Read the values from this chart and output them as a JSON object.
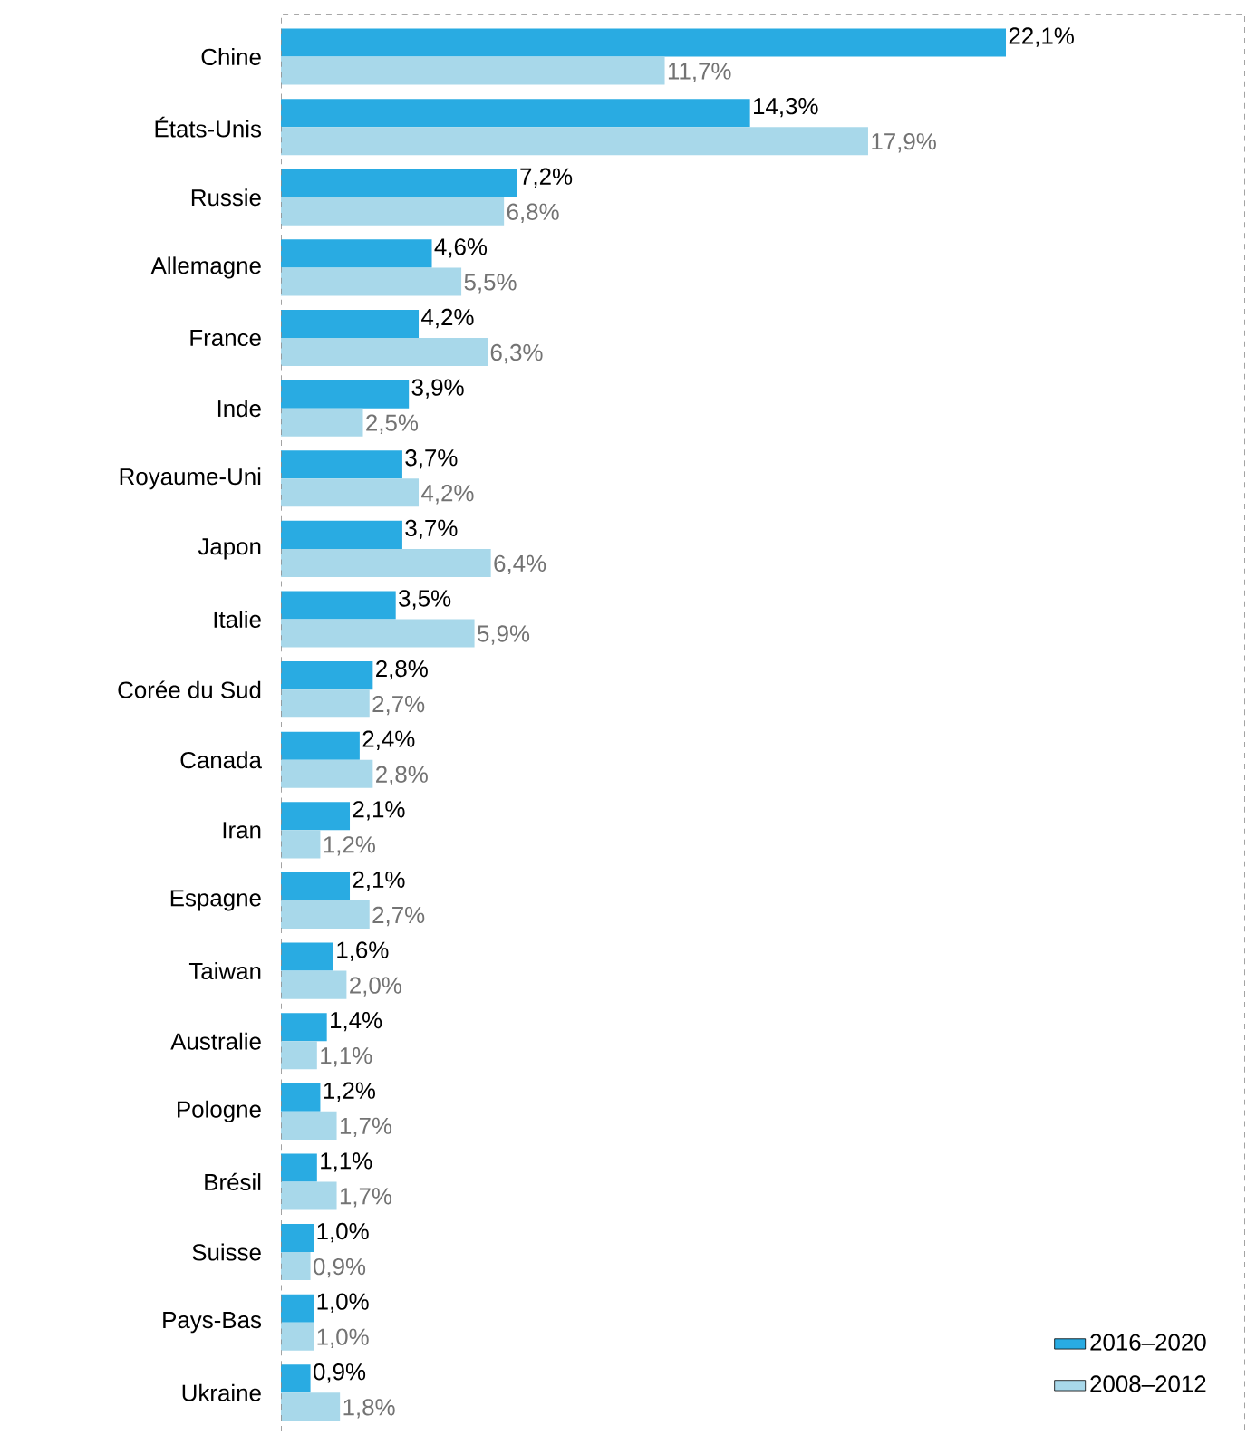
{
  "chart_data": {
    "type": "bar",
    "orientation": "horizontal",
    "legend": "bottom right",
    "tick_labels": "y",
    "categories": [
      "Chine",
      "États-Unis",
      "Russie",
      "Allemagne",
      "France",
      "Inde",
      "Royaume-Uni",
      "Japon",
      "Italie",
      "Corée du Sud",
      "Canada",
      "Iran",
      "Espagne",
      "Taiwan",
      "Australie",
      "Pologne",
      "Brésil",
      "Suisse",
      "Pays-Bas",
      "Ukraine"
    ],
    "series": [
      {
        "name": "2016–2020",
        "color": "#29abe2",
        "values": [
          22.1,
          14.3,
          7.2,
          4.6,
          4.2,
          3.9,
          3.7,
          3.7,
          3.5,
          2.8,
          2.4,
          2.1,
          2.1,
          1.6,
          1.4,
          1.2,
          1.1,
          1.0,
          1.0,
          0.9
        ],
        "value_labels": [
          "22,1%",
          "14,3%",
          "7,2%",
          "4,6%",
          "4,2%",
          "3,9%",
          "3,7%",
          "3,7%",
          "3,5%",
          "2,8%",
          "2,4%",
          "2,1%",
          "2,1%",
          "1,6%",
          "1,4%",
          "1,2%",
          "1,1%",
          "1,0%",
          "1,0%",
          "0,9%"
        ]
      },
      {
        "name": "2008–2012",
        "color": "#a8d8ea",
        "values": [
          11.7,
          17.9,
          6.8,
          5.5,
          6.3,
          2.5,
          4.2,
          6.4,
          5.9,
          2.7,
          2.8,
          1.2,
          2.7,
          2.0,
          1.1,
          1.7,
          1.7,
          0.9,
          1.0,
          1.8
        ],
        "value_labels": [
          "11,7%",
          "17,9%",
          "6,8%",
          "5,5%",
          "6,3%",
          "2,5%",
          "4,2%",
          "6,4%",
          "5,9%",
          "2,7%",
          "2,8%",
          "1,2%",
          "2,7%",
          "2,0%",
          "1,1%",
          "1,7%",
          "1,7%",
          "0,9%",
          "1,0%",
          "1,8%"
        ]
      }
    ]
  }
}
